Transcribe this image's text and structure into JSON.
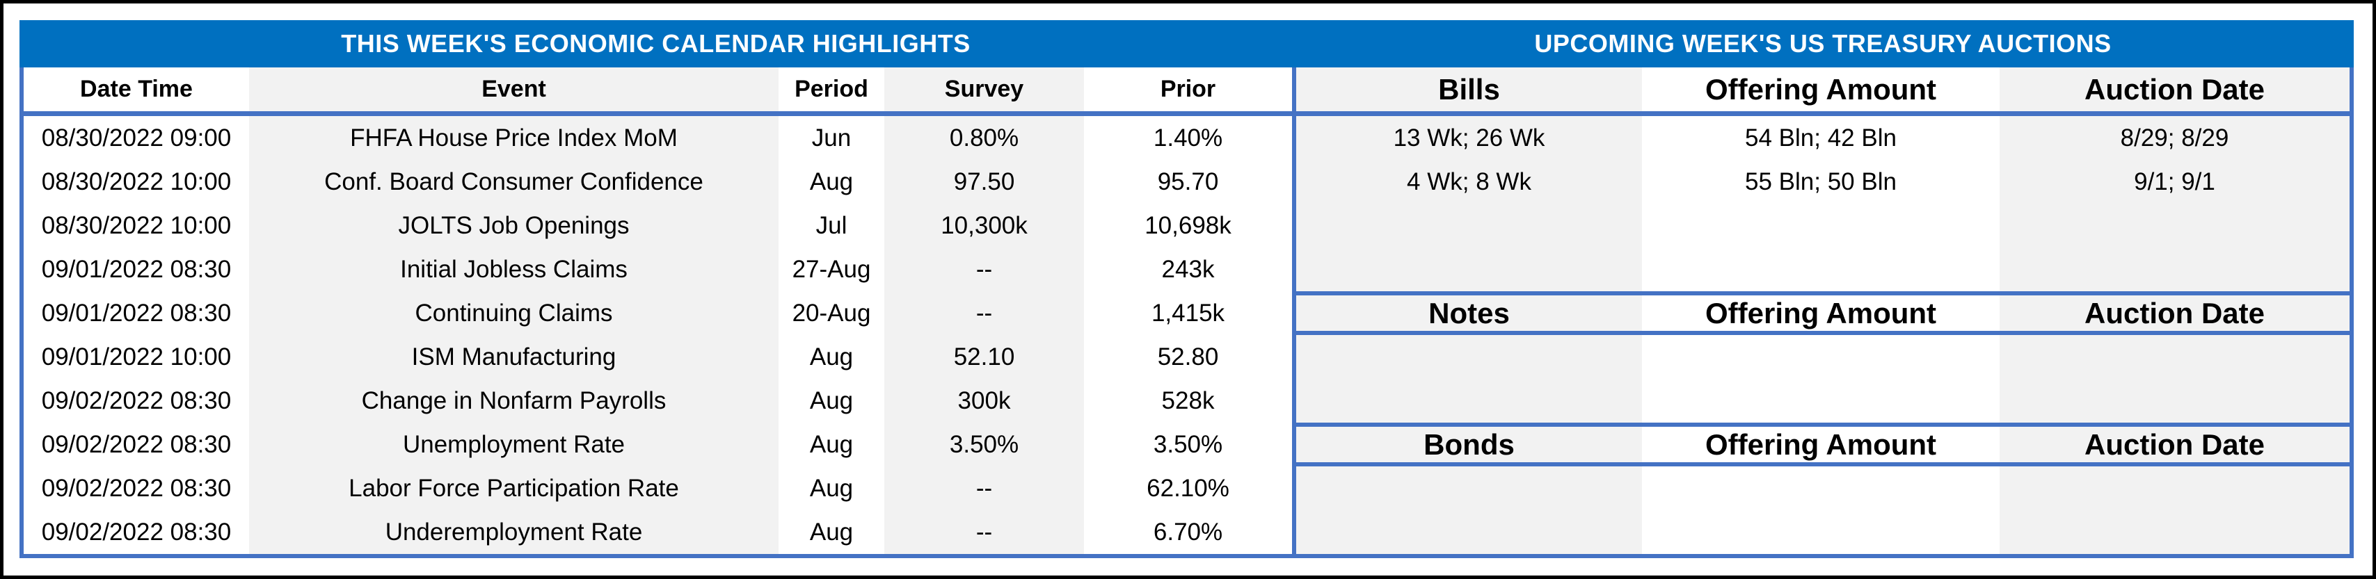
{
  "colors": {
    "band_blue": "#0070C0",
    "border_blue": "#4472C4",
    "stripe_gray": "#F2F2F2",
    "text": "#000000"
  },
  "calendar": {
    "title": "THIS WEEK'S ECONOMIC CALENDAR HIGHLIGHTS",
    "headers": {
      "date_time": "Date Time",
      "event": "Event",
      "period": "Period",
      "survey": "Survey",
      "prior": "Prior"
    },
    "rows": [
      {
        "date_time": "08/30/2022 09:00",
        "event": "FHFA House Price Index MoM",
        "period": "Jun",
        "survey": "0.80%",
        "prior": "1.40%"
      },
      {
        "date_time": "08/30/2022 10:00",
        "event": "Conf. Board Consumer Confidence",
        "period": "Aug",
        "survey": "97.50",
        "prior": "95.70"
      },
      {
        "date_time": "08/30/2022 10:00",
        "event": "JOLTS Job Openings",
        "period": "Jul",
        "survey": "10,300k",
        "prior": "10,698k"
      },
      {
        "date_time": "09/01/2022 08:30",
        "event": "Initial Jobless Claims",
        "period": "27-Aug",
        "survey": "--",
        "prior": "243k"
      },
      {
        "date_time": "09/01/2022 08:30",
        "event": "Continuing Claims",
        "period": "20-Aug",
        "survey": "--",
        "prior": "1,415k"
      },
      {
        "date_time": "09/01/2022 10:00",
        "event": "ISM Manufacturing",
        "period": "Aug",
        "survey": "52.10",
        "prior": "52.80"
      },
      {
        "date_time": "09/02/2022 08:30",
        "event": "Change in Nonfarm Payrolls",
        "period": "Aug",
        "survey": "300k",
        "prior": "528k"
      },
      {
        "date_time": "09/02/2022 08:30",
        "event": "Unemployment Rate",
        "period": "Aug",
        "survey": "3.50%",
        "prior": "3.50%"
      },
      {
        "date_time": "09/02/2022 08:30",
        "event": "Labor Force Participation Rate",
        "period": "Aug",
        "survey": "--",
        "prior": "62.10%"
      },
      {
        "date_time": "09/02/2022 08:30",
        "event": "Underemployment Rate",
        "period": "Aug",
        "survey": "--",
        "prior": "6.70%"
      }
    ]
  },
  "auctions": {
    "title": "UPCOMING WEEK'S US TREASURY AUCTIONS",
    "bills": {
      "label": "Bills",
      "amount_header": "Offering Amount",
      "date_header": "Auction Date",
      "rows": [
        {
          "security": "13 Wk; 26 Wk",
          "amount": "54 Bln; 42 Bln",
          "date": "8/29; 8/29"
        },
        {
          "security": "4 Wk; 8 Wk",
          "amount": "55 Bln; 50 Bln",
          "date": "9/1; 9/1"
        }
      ]
    },
    "notes": {
      "label": "Notes",
      "amount_header": "Offering Amount",
      "date_header": "Auction Date",
      "rows": []
    },
    "bonds": {
      "label": "Bonds",
      "amount_header": "Offering Amount",
      "date_header": "Auction Date",
      "rows": []
    }
  }
}
